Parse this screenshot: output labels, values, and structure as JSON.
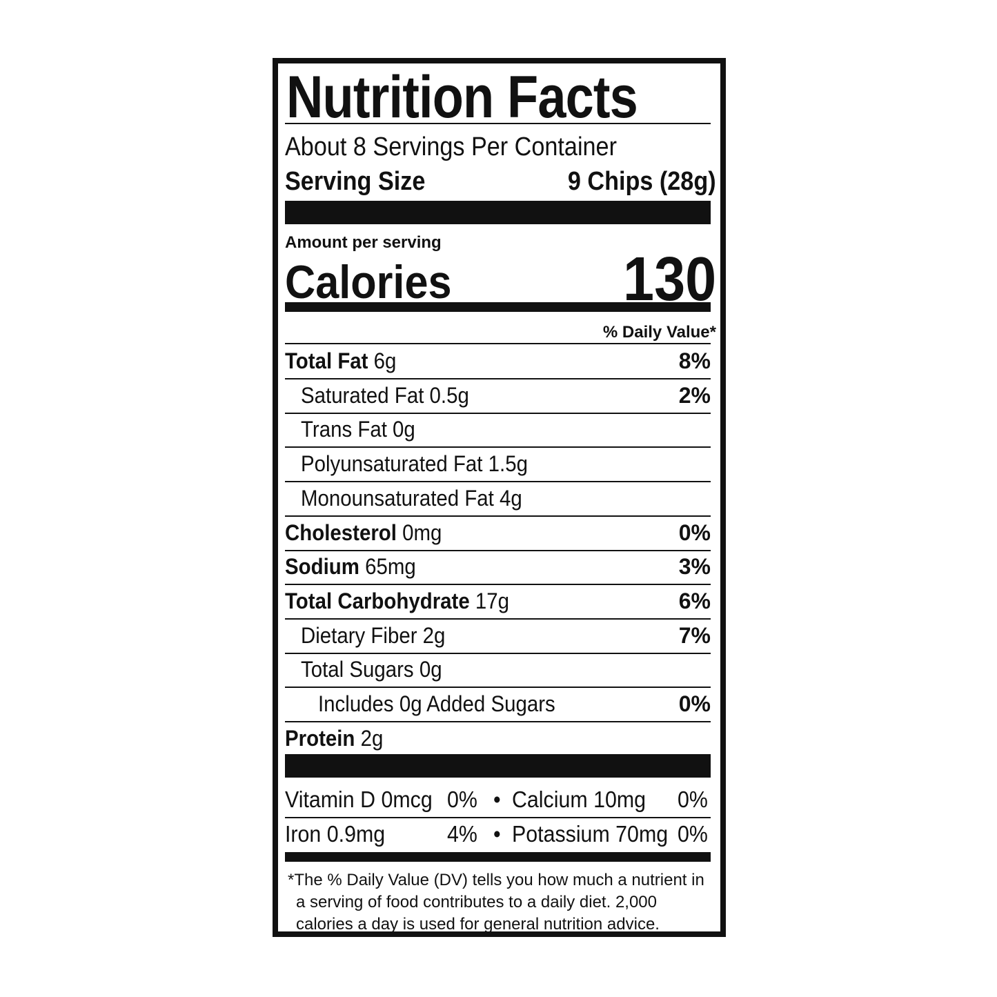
{
  "title": "Nutrition Facts",
  "servings_per_container": "About 8 Servings Per Container",
  "serving_size_label": "Serving Size",
  "serving_size_value": "9 Chips (28g)",
  "amount_per_serving": "Amount per serving",
  "calories_label": "Calories",
  "calories_value": "130",
  "daily_value_header": "% Daily Value*",
  "nutrients": [
    {
      "name": "Total Fat",
      "amount": "6g",
      "dv": "8%",
      "bold": true,
      "indent": 0
    },
    {
      "name": "Saturated Fat",
      "amount": "0.5g",
      "dv": "2%",
      "bold": false,
      "indent": 1
    },
    {
      "name": "Trans Fat",
      "amount": "0g",
      "dv": "",
      "bold": false,
      "indent": 1
    },
    {
      "name": "Polyunsaturated Fat",
      "amount": "1.5g",
      "dv": "",
      "bold": false,
      "indent": 1
    },
    {
      "name": "Monounsaturated Fat",
      "amount": "4g",
      "dv": "",
      "bold": false,
      "indent": 1
    },
    {
      "name": "Cholesterol",
      "amount": "0mg",
      "dv": "0%",
      "bold": true,
      "indent": 0
    },
    {
      "name": "Sodium",
      "amount": "65mg",
      "dv": "3%",
      "bold": true,
      "indent": 0
    },
    {
      "name": "Total Carbohydrate",
      "amount": "17g",
      "dv": "6%",
      "bold": true,
      "indent": 0
    },
    {
      "name": "Dietary Fiber",
      "amount": "2g",
      "dv": "7%",
      "bold": false,
      "indent": 1
    },
    {
      "name": "Total Sugars",
      "amount": "0g",
      "dv": "",
      "bold": false,
      "indent": 1
    },
    {
      "name": "Includes 0g Added Sugars",
      "amount": "",
      "dv": "0%",
      "bold": false,
      "indent": 2
    },
    {
      "name": "Protein",
      "amount": "2g",
      "dv": "",
      "bold": true,
      "indent": 0
    }
  ],
  "vitamins": [
    {
      "left": "Vitamin D 0mcg",
      "left_dv": "0%",
      "right": "Calcium 10mg",
      "right_dv": "0%"
    },
    {
      "left": "Iron 0.9mg",
      "left_dv": "4%",
      "right": "Potassium 70mg",
      "right_dv": "0%"
    }
  ],
  "bullet": "•",
  "footnote": "*The % Daily Value (DV) tells you how much a nutrient in a serving of food contributes to a daily diet. 2,000 calories a day is used for general nutrition advice."
}
